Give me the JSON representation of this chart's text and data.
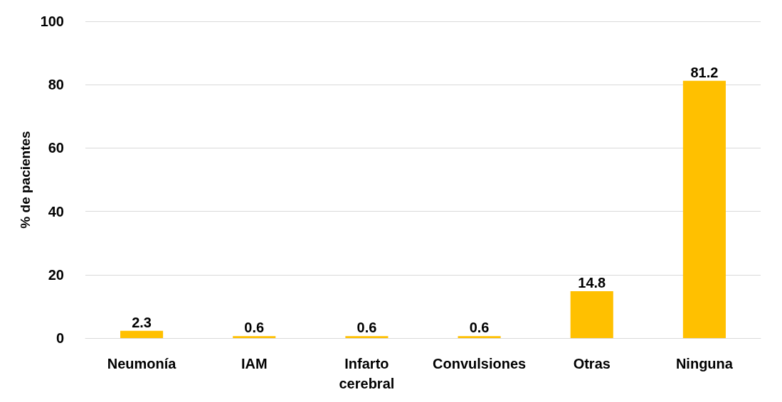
{
  "chart_data": {
    "type": "bar",
    "ylabel": "% de pacientes",
    "categories": [
      "Neumonía",
      "IAM",
      "Infarto\ncerebral",
      "Convulsiones",
      "Otras",
      "Ninguna"
    ],
    "values": [
      2.3,
      0.6,
      0.6,
      0.6,
      14.8,
      81.2
    ],
    "color": "#ffc000",
    "ylim": [
      0,
      100
    ],
    "yticks": [
      0,
      20,
      40,
      60,
      80,
      100
    ],
    "grid": "y",
    "data_labels": true
  }
}
